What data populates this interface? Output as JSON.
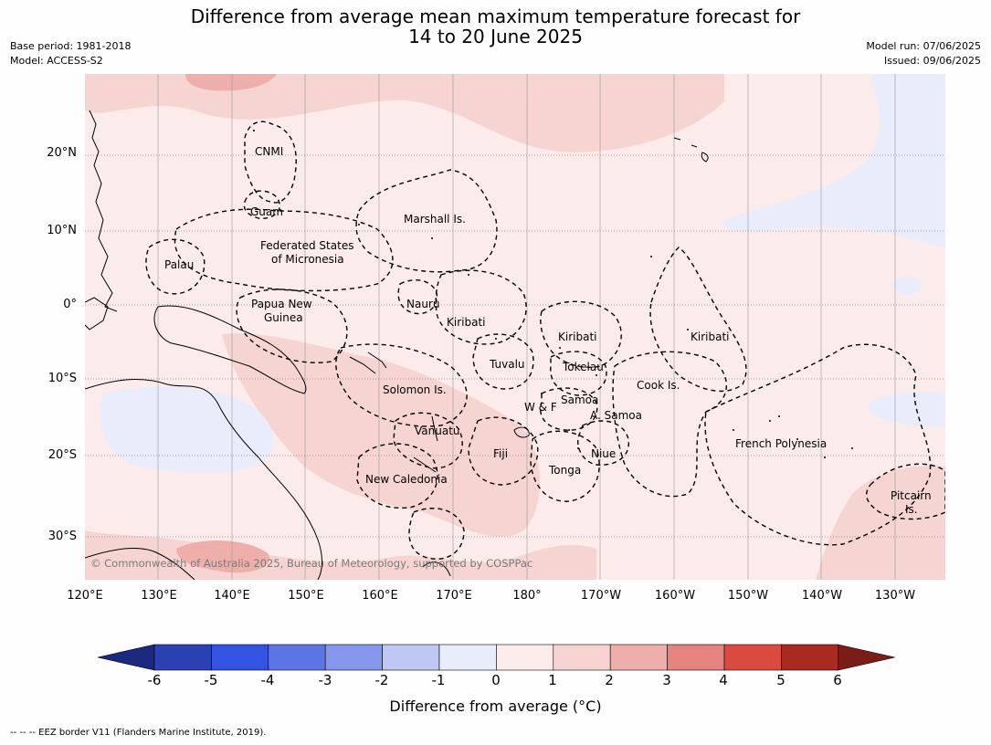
{
  "title_line1": "Difference from average mean maximum temperature forecast for",
  "title_line2": "14 to 20 June 2025",
  "base_period": "Base period: 1981-2018",
  "model": "Model: ACCESS-S2",
  "model_run": "Model run: 07/06/2025",
  "issued": "Issued: 09/06/2025",
  "lat_labels": [
    "20°N",
    "10°N",
    "0°",
    "10°S",
    "20°S",
    "30°S"
  ],
  "lon_labels": [
    "120°E",
    "130°E",
    "140°E",
    "150°E",
    "160°E",
    "170°E",
    "180°",
    "170°W",
    "160°W",
    "150°W",
    "140°W",
    "130°W"
  ],
  "places": {
    "cnmi": "CNMI",
    "guam": "Guam",
    "marshall": "Marshall Is.",
    "fsm_1": "Federated States",
    "fsm_2": "of Micronesia",
    "palau": "Palau",
    "png_1": "Papua New",
    "png_2": "Guinea",
    "nauru": "Nauru",
    "kiribati_w": "Kiribati",
    "kiribati_c": "Kiribati",
    "kiribati_e": "Kiribati",
    "tuvalu": "Tuvalu",
    "tokelau": "Tokelau",
    "cook": "Cook Is.",
    "solomon": "Solomon Is.",
    "wf": "W & F",
    "samoa": "Samoa",
    "asamoa": "A. Samoa",
    "vanuatu": "Vanuatu",
    "fiji": "Fiji",
    "niue": "Niue",
    "tonga": "Tonga",
    "french_poly": "French Polynesia",
    "new_caledonia": "New Caledonia",
    "pitcairn_1": "Pitcairn",
    "pitcairn_2": "Is."
  },
  "copyright": "© Commonwealth of Australia 2025, Bureau of Meteorology, supported by COSPPac",
  "colorbar": {
    "ticks": [
      "-6",
      "-5",
      "-4",
      "-3",
      "-2",
      "-1",
      "0",
      "1",
      "2",
      "3",
      "4",
      "5",
      "6"
    ],
    "colors": [
      "#1b2a7e",
      "#2a41b4",
      "#3354e0",
      "#5b75e4",
      "#8597ea",
      "#bfc8f2",
      "#e8ecfb",
      "#fbeceb",
      "#f6d4d2",
      "#eeaeaa",
      "#e5847f",
      "#db4a3f",
      "#a82a21",
      "#7a1d18"
    ],
    "title": "Difference from average (°C)"
  },
  "footer": "-- -- -- EEZ border V11 (Flanders Marine Institute, 2019)."
}
